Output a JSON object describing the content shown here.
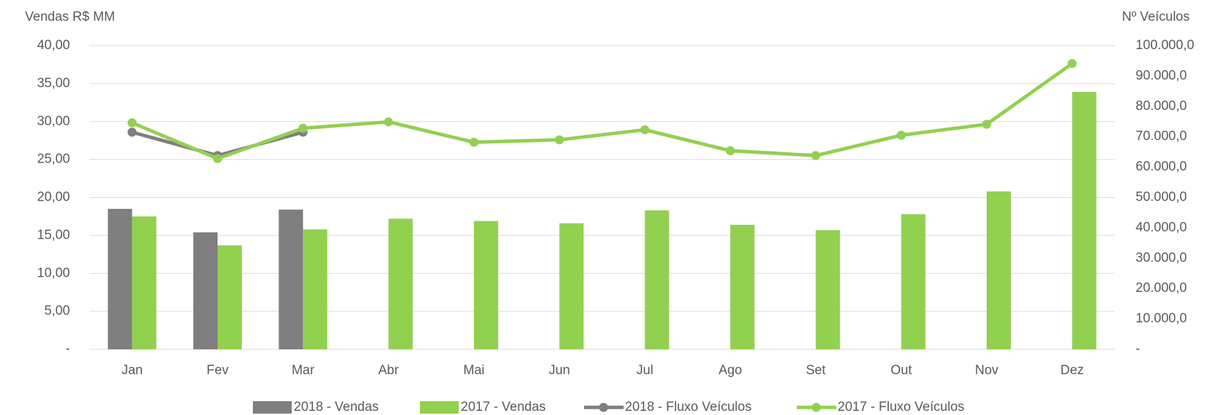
{
  "chart_data": {
    "type": "bar-line",
    "y_label": "Vendas R$ MM",
    "y2_label": "Nº Veículos",
    "categories": [
      "Jan",
      "Fev",
      "Mar",
      "Abr",
      "Mai",
      "Jun",
      "Jul",
      "Ago",
      "Set",
      "Out",
      "Nov",
      "Dez"
    ],
    "series": [
      {
        "name": "2018 - Vendas",
        "kind": "bar",
        "color": "#7f7f7f",
        "values": [
          18.5,
          15.4,
          18.4,
          null,
          null,
          null,
          null,
          null,
          null,
          null,
          null,
          null
        ]
      },
      {
        "name": "2017 - Vendas",
        "kind": "bar",
        "color": "#92d050",
        "values": [
          17.5,
          13.7,
          15.8,
          17.2,
          16.9,
          16.6,
          18.3,
          16.4,
          15.7,
          17.8,
          20.8,
          33.9
        ]
      },
      {
        "name": "2018 - Fluxo Veículos",
        "kind": "line",
        "axis": "y2",
        "color": "#7f7f7f",
        "values": [
          71500,
          63800,
          71500,
          null,
          null,
          null,
          null,
          null,
          null,
          null,
          null,
          null
        ]
      },
      {
        "name": "2017 - Fluxo Veículos",
        "kind": "line",
        "axis": "y2",
        "color": "#92d050",
        "values": [
          74600,
          62800,
          72800,
          74900,
          68200,
          69000,
          72300,
          65400,
          63800,
          70500,
          74100,
          94100
        ]
      }
    ],
    "ylim": [
      0,
      40
    ],
    "yticks": [
      {
        "value": 0,
        "label": "-"
      },
      {
        "value": 5,
        "label": "5,00"
      },
      {
        "value": 10,
        "label": "10,00"
      },
      {
        "value": 15,
        "label": "15,00"
      },
      {
        "value": 20,
        "label": "20,00"
      },
      {
        "value": 25,
        "label": "25,00"
      },
      {
        "value": 30,
        "label": "30,00"
      },
      {
        "value": 35,
        "label": "35,00"
      },
      {
        "value": 40,
        "label": "40,00"
      }
    ],
    "y2lim": [
      0,
      100000
    ],
    "y2ticks": [
      {
        "value": 0,
        "label": "-"
      },
      {
        "value": 10000,
        "label": "10.000,0"
      },
      {
        "value": 20000,
        "label": "20.000,0"
      },
      {
        "value": 30000,
        "label": "30.000,0"
      },
      {
        "value": 40000,
        "label": "40.000,0"
      },
      {
        "value": 50000,
        "label": "50.000,0"
      },
      {
        "value": 60000,
        "label": "60.000,0"
      },
      {
        "value": 70000,
        "label": "70.000,0"
      },
      {
        "value": 80000,
        "label": "80.000,0"
      },
      {
        "value": 90000,
        "label": "90.000,0"
      },
      {
        "value": 100000,
        "label": "100.000,0"
      }
    ],
    "grid": true,
    "legend": "bottom"
  }
}
